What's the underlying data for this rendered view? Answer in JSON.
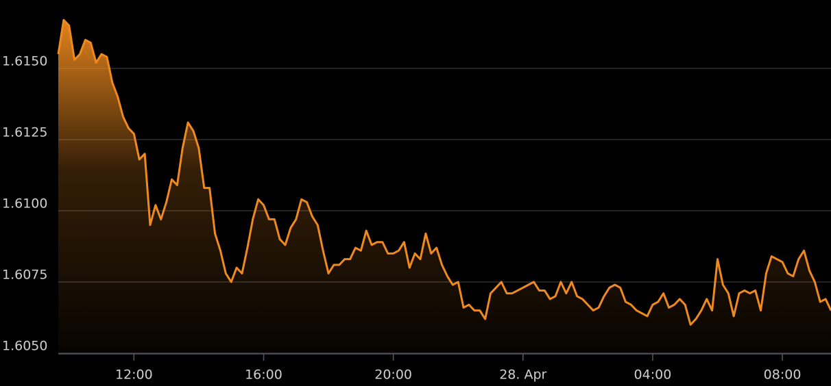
{
  "chart_data": {
    "type": "area",
    "color": "#ee8a1f",
    "grid": true,
    "ylim": [
      1.605,
      1.6174
    ],
    "yticks": [
      {
        "value": 1.605,
        "label": "1.6050"
      },
      {
        "value": 1.6075,
        "label": "1.6075"
      },
      {
        "value": 1.61,
        "label": "1.6100"
      },
      {
        "value": 1.6125,
        "label": "1.6125"
      },
      {
        "value": 1.615,
        "label": "1.6150"
      }
    ],
    "categories": [
      null,
      null,
      null,
      null,
      null,
      null,
      null,
      null,
      null,
      null,
      null,
      null,
      null,
      null,
      "12:00",
      null,
      null,
      null,
      null,
      null,
      null,
      null,
      null,
      null,
      null,
      null,
      null,
      null,
      null,
      null,
      null,
      null,
      null,
      null,
      null,
      null,
      null,
      null,
      "16:00",
      null,
      null,
      null,
      null,
      null,
      null,
      null,
      null,
      null,
      null,
      null,
      null,
      null,
      null,
      null,
      null,
      null,
      null,
      null,
      null,
      null,
      null,
      null,
      "20:00",
      null,
      null,
      null,
      null,
      null,
      null,
      null,
      null,
      null,
      null,
      null,
      null,
      null,
      null,
      null,
      null,
      null,
      null,
      null,
      null,
      null,
      null,
      null,
      "28. Apr",
      null,
      null,
      null,
      null,
      null,
      null,
      null,
      null,
      null,
      null,
      null,
      null,
      null,
      null,
      null,
      null,
      null,
      null,
      null,
      null,
      null,
      null,
      null,
      "04:00",
      null,
      null,
      null,
      null,
      null,
      null,
      null,
      null,
      null,
      null,
      null,
      null,
      null,
      null,
      null,
      null,
      null,
      null,
      null,
      null,
      null,
      null,
      null,
      "08:00",
      null,
      null,
      null,
      null,
      null,
      null,
      null,
      null,
      null
    ],
    "values": [
      1.6155,
      1.6167,
      1.6165,
      1.6153,
      1.6155,
      1.616,
      1.6159,
      1.6152,
      1.6155,
      1.6154,
      1.6145,
      1.614,
      1.6133,
      1.6129,
      1.6127,
      1.6118,
      1.612,
      1.6095,
      1.6102,
      1.6097,
      1.6103,
      1.6111,
      1.6109,
      1.6122,
      1.6131,
      1.6128,
      1.6122,
      1.6108,
      1.6108,
      1.6092,
      1.6086,
      1.6078,
      1.6075,
      1.608,
      1.6078,
      1.6087,
      1.6097,
      1.6104,
      1.6102,
      1.6097,
      1.6097,
      1.609,
      1.6088,
      1.6094,
      1.6097,
      1.6104,
      1.6103,
      1.6098,
      1.6095,
      1.6086,
      1.6078,
      1.6081,
      1.6081,
      1.6083,
      1.6083,
      1.6087,
      1.6086,
      1.6093,
      1.6088,
      1.6089,
      1.6089,
      1.6085,
      1.6085,
      1.6086,
      1.6089,
      1.608,
      1.6085,
      1.6083,
      1.6092,
      1.6085,
      1.6087,
      1.6081,
      1.6077,
      1.6074,
      1.6075,
      1.6066,
      1.6067,
      1.6065,
      1.6065,
      1.6062,
      1.6071,
      1.6073,
      1.6075,
      1.6071,
      1.6071,
      1.6072,
      1.6073,
      1.6074,
      1.6075,
      1.6072,
      1.6072,
      1.6069,
      1.607,
      1.6075,
      1.6071,
      1.6075,
      1.607,
      1.6069,
      1.6067,
      1.6065,
      1.6066,
      1.607,
      1.6073,
      1.6074,
      1.6073,
      1.6068,
      1.6067,
      1.6065,
      1.6064,
      1.6063,
      1.6067,
      1.6068,
      1.6071,
      1.6066,
      1.6067,
      1.6069,
      1.6067,
      1.606,
      1.6062,
      1.6065,
      1.6069,
      1.6065,
      1.6083,
      1.6074,
      1.6071,
      1.6063,
      1.6071,
      1.6072,
      1.6071,
      1.6072,
      1.6065,
      1.6078,
      1.6084,
      1.6083,
      1.6082,
      1.6078,
      1.6077,
      1.6083,
      1.6086,
      1.6079,
      1.6075,
      1.6068,
      1.6069,
      1.6065
    ]
  }
}
